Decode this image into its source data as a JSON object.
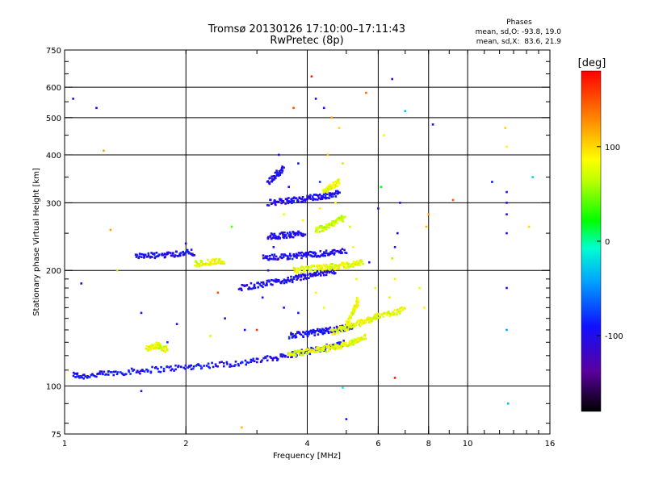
{
  "chart_data": {
    "type": "scatter",
    "title": "Tromsø 20130126 17:10:00–17:11:43",
    "subtitle": "RwPretec (8p)",
    "xlabel": "Frequency [MHz]",
    "ylabel": "Stationary phase Virtual Height [km]",
    "x_scale": "log",
    "y_scale": "log",
    "xlim": [
      1,
      16
    ],
    "ylim": [
      75,
      750
    ],
    "grid": true,
    "x_ticks": [
      1,
      2,
      4,
      6,
      8,
      10,
      16
    ],
    "x_tick_labels": [
      "1",
      "2",
      "4",
      "6",
      "8",
      "10",
      "16"
    ],
    "x_grid_lines": [
      2,
      4,
      6,
      8,
      10
    ],
    "y_ticks": [
      75,
      100,
      200,
      300,
      400,
      500,
      600,
      750
    ],
    "y_tick_labels": [
      "75",
      "100",
      "200",
      "300",
      "400",
      "500",
      "600",
      "750"
    ],
    "y_grid_lines": [
      100,
      200,
      300,
      400,
      500,
      600
    ],
    "phase_box": {
      "title": "Phases",
      "line_o": "mean, sd,O: -93.8, 19.0",
      "line_x": "mean, sd,X:  83.6, 21.9"
    },
    "colorbar": {
      "label": "[deg]",
      "min": -180,
      "max": 180,
      "ticks": [
        100,
        0,
        -100
      ],
      "tick_labels": [
        "100",
        "0",
        "-100"
      ]
    },
    "traces": [
      {
        "phase": -95,
        "x": [
          1.05,
          1.1,
          1.2,
          1.3,
          1.45,
          1.6,
          1.8,
          2.0,
          2.2,
          2.5,
          2.8,
          3.1,
          3.4,
          3.7,
          4.0,
          4.3,
          4.6,
          5.0
        ],
        "y": [
          107,
          106,
          107,
          108,
          109,
          110,
          111,
          112,
          113,
          114,
          115,
          117,
          119,
          121,
          123,
          125,
          127,
          130
        ]
      },
      {
        "phase": 80,
        "x": [
          3.6,
          3.8,
          4.0,
          4.2,
          4.4,
          4.6,
          4.8,
          5.0,
          5.2,
          5.4,
          5.6
        ],
        "y": [
          121,
          122,
          123,
          124,
          125,
          126,
          127,
          128,
          130,
          132,
          134
        ]
      },
      {
        "phase": 80,
        "x": [
          1.6,
          1.65,
          1.7,
          1.75,
          1.8
        ],
        "y": [
          125,
          127,
          128,
          126,
          124
        ]
      },
      {
        "phase": -95,
        "x": [
          3.6,
          3.8,
          4.0,
          4.2,
          4.4,
          4.6,
          4.8,
          5.0,
          5.2
        ],
        "y": [
          135,
          136,
          137,
          138,
          139,
          140,
          141,
          142,
          143
        ]
      },
      {
        "phase": 80,
        "x": [
          4.6,
          4.8,
          5.0,
          5.2,
          5.4,
          5.6,
          5.8,
          6.0,
          6.3,
          6.6,
          7.0
        ],
        "y": [
          138,
          140,
          142,
          144,
          146,
          148,
          150,
          152,
          154,
          156,
          158
        ]
      },
      {
        "phase": 80,
        "x": [
          5.0,
          5.1,
          5.2,
          5.3,
          5.35
        ],
        "y": [
          145,
          150,
          156,
          162,
          168
        ]
      },
      {
        "phase": -100,
        "x": [
          2.7,
          2.9,
          3.1,
          3.3,
          3.5,
          3.7,
          3.9,
          4.1,
          4.3,
          4.5,
          4.7
        ],
        "y": [
          180,
          182,
          184,
          186,
          188,
          190,
          192,
          194,
          196,
          198,
          200
        ]
      },
      {
        "phase": 80,
        "x": [
          3.7,
          3.9,
          4.1,
          4.3,
          4.5,
          4.7,
          4.9,
          5.1,
          5.3,
          5.5
        ],
        "y": [
          200,
          201,
          202,
          203,
          204,
          205,
          206,
          207,
          208,
          210
        ]
      },
      {
        "phase": 80,
        "x": [
          2.1,
          2.2,
          2.3,
          2.4,
          2.5
        ],
        "y": [
          208,
          209,
          210,
          211,
          212
        ]
      },
      {
        "phase": -100,
        "x": [
          1.5,
          1.6,
          1.7,
          1.8,
          1.9,
          2.0,
          2.1
        ],
        "y": [
          217,
          218,
          219,
          220,
          221,
          222,
          223
        ]
      },
      {
        "phase": -100,
        "x": [
          3.1,
          3.3,
          3.5,
          3.7,
          3.9,
          4.1,
          4.3,
          4.5,
          4.7,
          5.0
        ],
        "y": [
          215,
          216,
          217,
          218,
          219,
          220,
          221,
          222,
          223,
          225
        ]
      },
      {
        "phase": -100,
        "x": [
          3.2,
          3.35,
          3.5,
          3.65,
          3.8,
          3.95
        ],
        "y": [
          245,
          246,
          247,
          248,
          249,
          250
        ]
      },
      {
        "phase": 70,
        "x": [
          4.2,
          4.35,
          4.5,
          4.65,
          4.8,
          4.95
        ],
        "y": [
          255,
          258,
          262,
          266,
          270,
          274
        ]
      },
      {
        "phase": -100,
        "x": [
          3.2,
          3.4,
          3.6,
          3.8,
          4.0,
          4.2,
          4.4,
          4.6,
          4.8
        ],
        "y": [
          300,
          302,
          304,
          306,
          308,
          310,
          312,
          315,
          320
        ]
      },
      {
        "phase": -100,
        "x": [
          3.2,
          3.3,
          3.4,
          3.5
        ],
        "y": [
          340,
          350,
          360,
          370
        ]
      },
      {
        "phase": 80,
        "x": [
          4.4,
          4.5,
          4.6,
          4.7,
          4.8
        ],
        "y": [
          320,
          325,
          330,
          335,
          340
        ]
      }
    ],
    "points": [
      {
        "x": 1.05,
        "y": 560,
        "phase": -90
      },
      {
        "x": 1.2,
        "y": 530,
        "phase": -100
      },
      {
        "x": 3.4,
        "y": 400,
        "phase": -100
      },
      {
        "x": 3.7,
        "y": 530,
        "phase": 150
      },
      {
        "x": 4.1,
        "y": 640,
        "phase": 170
      },
      {
        "x": 4.2,
        "y": 560,
        "phase": -100
      },
      {
        "x": 4.4,
        "y": 530,
        "phase": -90
      },
      {
        "x": 4.6,
        "y": 500,
        "phase": 120
      },
      {
        "x": 4.8,
        "y": 470,
        "phase": 100
      },
      {
        "x": 5.6,
        "y": 580,
        "phase": 140
      },
      {
        "x": 6.5,
        "y": 630,
        "phase": -120
      },
      {
        "x": 6.2,
        "y": 450,
        "phase": 80
      },
      {
        "x": 8.2,
        "y": 480,
        "phase": -100
      },
      {
        "x": 7.0,
        "y": 520,
        "phase": -30
      },
      {
        "x": 8.0,
        "y": 280,
        "phase": 120
      },
      {
        "x": 7.9,
        "y": 260,
        "phase": 110
      },
      {
        "x": 9.2,
        "y": 305,
        "phase": 150
      },
      {
        "x": 11.5,
        "y": 340,
        "phase": -90
      },
      {
        "x": 12.5,
        "y": 320,
        "phase": -100
      },
      {
        "x": 12.5,
        "y": 300,
        "phase": -100
      },
      {
        "x": 12.5,
        "y": 280,
        "phase": -90
      },
      {
        "x": 12.4,
        "y": 470,
        "phase": 100
      },
      {
        "x": 12.5,
        "y": 420,
        "phase": 90
      },
      {
        "x": 12.5,
        "y": 250,
        "phase": -110
      },
      {
        "x": 12.5,
        "y": 180,
        "phase": -100
      },
      {
        "x": 12.5,
        "y": 140,
        "phase": -40
      },
      {
        "x": 12.6,
        "y": 90,
        "phase": -30
      },
      {
        "x": 14.5,
        "y": 350,
        "phase": -20
      },
      {
        "x": 14.2,
        "y": 260,
        "phase": 100
      },
      {
        "x": 6.8,
        "y": 300,
        "phase": -90
      },
      {
        "x": 6.7,
        "y": 250,
        "phase": -90
      },
      {
        "x": 6.6,
        "y": 230,
        "phase": -100
      },
      {
        "x": 6.5,
        "y": 215,
        "phase": 60
      },
      {
        "x": 6.0,
        "y": 290,
        "phase": -90
      },
      {
        "x": 5.7,
        "y": 210,
        "phase": -100
      },
      {
        "x": 5.9,
        "y": 180,
        "phase": 80
      },
      {
        "x": 6.4,
        "y": 170,
        "phase": 70
      },
      {
        "x": 6.6,
        "y": 190,
        "phase": 90
      },
      {
        "x": 7.6,
        "y": 180,
        "phase": 80
      },
      {
        "x": 7.8,
        "y": 160,
        "phase": 90
      },
      {
        "x": 1.3,
        "y": 255,
        "phase": 120
      },
      {
        "x": 1.35,
        "y": 200,
        "phase": 60
      },
      {
        "x": 1.1,
        "y": 185,
        "phase": -100
      },
      {
        "x": 1.55,
        "y": 155,
        "phase": -110
      },
      {
        "x": 1.55,
        "y": 97,
        "phase": -110
      },
      {
        "x": 2.75,
        "y": 78,
        "phase": 110
      },
      {
        "x": 5.0,
        "y": 82,
        "phase": -90
      },
      {
        "x": 6.6,
        "y": 105,
        "phase": 170
      },
      {
        "x": 4.9,
        "y": 99,
        "phase": -10
      },
      {
        "x": 2.6,
        "y": 260,
        "phase": 40
      },
      {
        "x": 2.0,
        "y": 235,
        "phase": -100
      },
      {
        "x": 2.5,
        "y": 150,
        "phase": -100
      },
      {
        "x": 2.4,
        "y": 175,
        "phase": 150
      },
      {
        "x": 1.9,
        "y": 145,
        "phase": -100
      },
      {
        "x": 2.3,
        "y": 135,
        "phase": 70
      },
      {
        "x": 2.8,
        "y": 140,
        "phase": -90
      },
      {
        "x": 3.0,
        "y": 140,
        "phase": 160
      },
      {
        "x": 1.25,
        "y": 410,
        "phase": 120
      },
      {
        "x": 1.8,
        "y": 130,
        "phase": -80
      },
      {
        "x": 4.9,
        "y": 380,
        "phase": 100
      },
      {
        "x": 4.5,
        "y": 400,
        "phase": 110
      },
      {
        "x": 3.8,
        "y": 380,
        "phase": -90
      },
      {
        "x": 3.6,
        "y": 330,
        "phase": -100
      },
      {
        "x": 4.3,
        "y": 290,
        "phase": 90
      },
      {
        "x": 3.9,
        "y": 270,
        "phase": 80
      },
      {
        "x": 4.7,
        "y": 300,
        "phase": 90
      },
      {
        "x": 3.5,
        "y": 280,
        "phase": 80
      },
      {
        "x": 3.2,
        "y": 200,
        "phase": -100
      },
      {
        "x": 3.3,
        "y": 230,
        "phase": -100
      },
      {
        "x": 3.1,
        "y": 170,
        "phase": -90
      },
      {
        "x": 3.5,
        "y": 160,
        "phase": -100
      },
      {
        "x": 3.8,
        "y": 155,
        "phase": -90
      },
      {
        "x": 4.4,
        "y": 160,
        "phase": 80
      },
      {
        "x": 4.2,
        "y": 175,
        "phase": 90
      },
      {
        "x": 5.1,
        "y": 260,
        "phase": 70
      },
      {
        "x": 5.2,
        "y": 230,
        "phase": 80
      },
      {
        "x": 5.3,
        "y": 190,
        "phase": 80
      },
      {
        "x": 4.3,
        "y": 340,
        "phase": -80
      },
      {
        "x": 6.1,
        "y": 330,
        "phase": 20
      }
    ]
  }
}
